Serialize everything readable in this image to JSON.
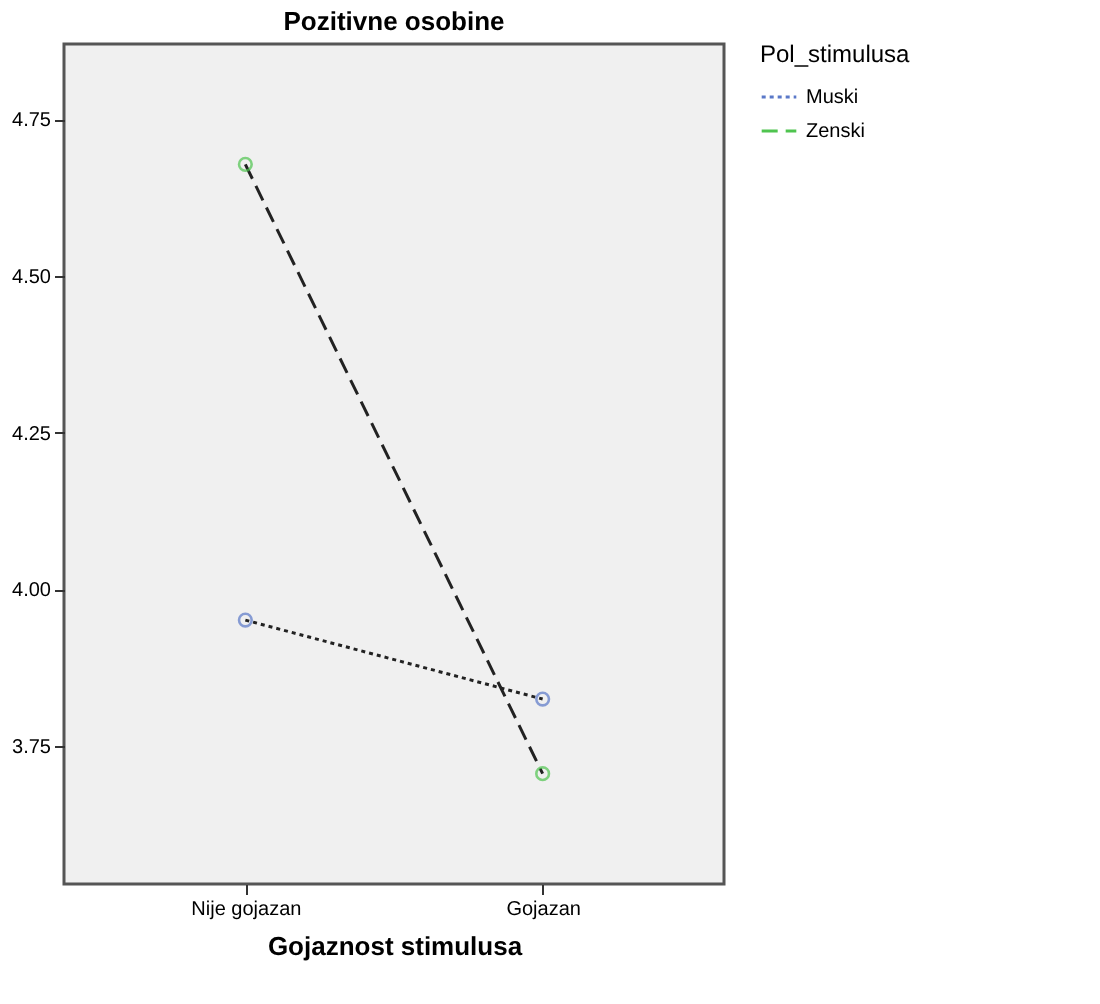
{
  "chart_data": {
    "type": "line",
    "title": "Pozitivne osobine",
    "xlabel": "Gojaznost stimulusa",
    "legend_title": "Pol_stimulusa",
    "categories": [
      "Nije gojazan",
      "Gojazan"
    ],
    "series": [
      {
        "name": "Muski",
        "color": "#5a78c8",
        "line_style": "dotted",
        "values": [
          3.951,
          3.825
        ]
      },
      {
        "name": "Zenski",
        "color": "#4fc44f",
        "line_style": "dashed",
        "values": [
          4.678,
          3.706
        ]
      }
    ],
    "ylim": [
      3.53,
      4.87
    ],
    "yticks": [
      3.75,
      {
        "value": 4,
        "label": "4.00"
      },
      4.25,
      {
        "value": 4.5,
        "label": "4.50"
      },
      4.75
    ],
    "grid": false,
    "legend": "top right",
    "marker": "circle"
  }
}
